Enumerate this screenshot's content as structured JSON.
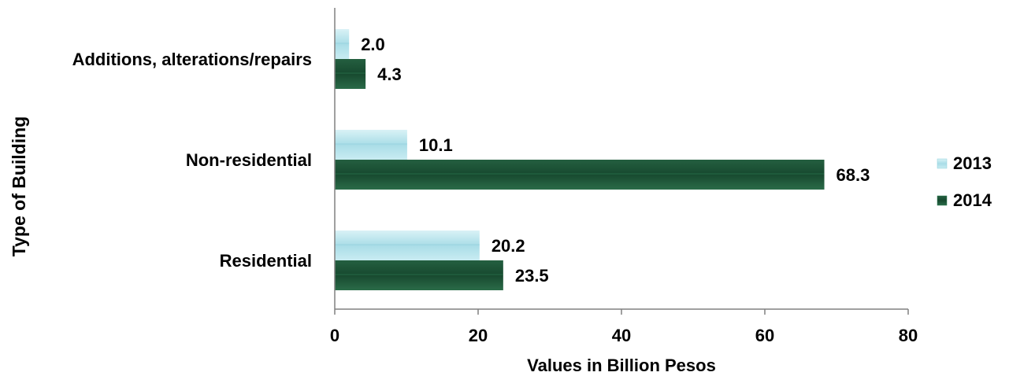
{
  "chart_data": {
    "type": "bar",
    "orientation": "horizontal",
    "title": "",
    "xlabel": "Values in Billion Pesos",
    "ylabel": "Type of Building",
    "categories": [
      "Additions, alterations/repairs",
      "Non-residential",
      "Residential"
    ],
    "series": [
      {
        "name": "2013",
        "values": [
          2.0,
          10.1,
          20.2
        ],
        "value_labels": [
          "2.0",
          "10.1",
          "20.2"
        ],
        "color": "#bfe6ee",
        "accent": "#8ecfdc"
      },
      {
        "name": "2014",
        "values": [
          4.3,
          68.3,
          23.5
        ],
        "value_labels": [
          "4.3",
          "68.3",
          "23.5"
        ],
        "color": "#1e5a3a",
        "accent": "#2f7a52"
      }
    ],
    "xlim": [
      0,
      80
    ],
    "xticks": [
      "0",
      "20",
      "40",
      "60",
      "80"
    ],
    "grid": false,
    "legend_position": "right"
  }
}
